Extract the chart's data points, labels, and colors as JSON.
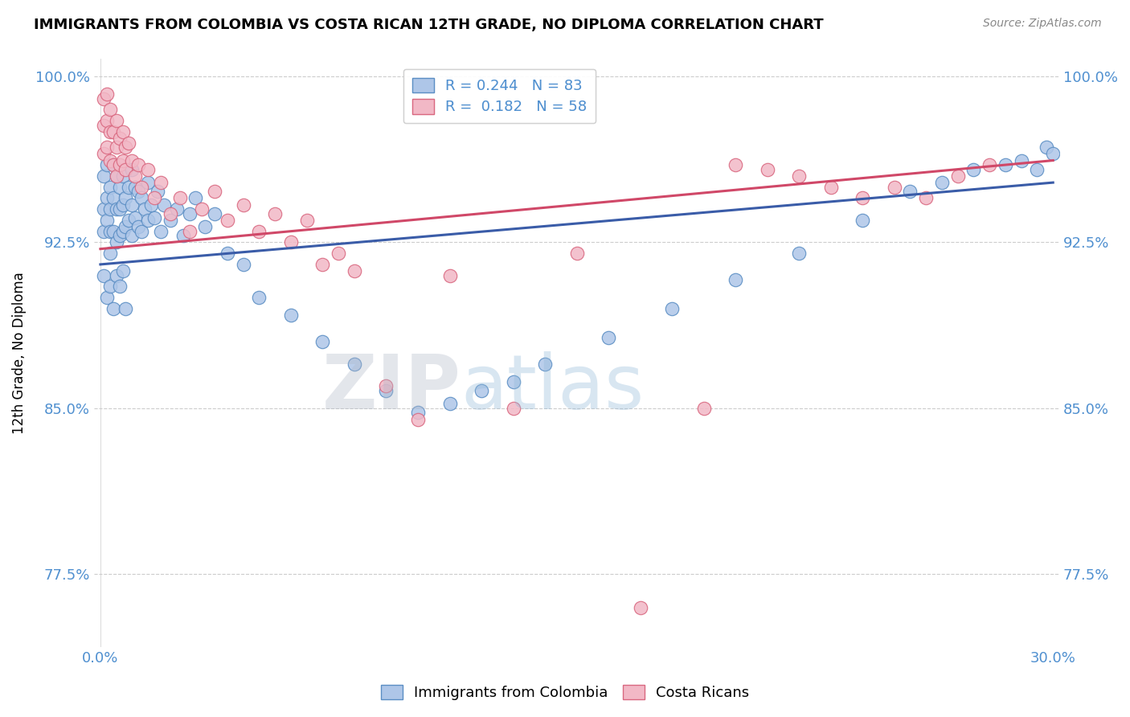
{
  "title": "IMMIGRANTS FROM COLOMBIA VS COSTA RICAN 12TH GRADE, NO DIPLOMA CORRELATION CHART",
  "source": "Source: ZipAtlas.com",
  "ylabel": "12th Grade, No Diploma",
  "xlim": [
    -0.002,
    0.302
  ],
  "ylim": [
    0.742,
    1.008
  ],
  "xtick_vals": [
    0.0,
    0.3
  ],
  "xticklabels": [
    "0.0%",
    "30.0%"
  ],
  "ytick_vals": [
    0.775,
    0.85,
    0.925,
    1.0
  ],
  "yticklabels": [
    "77.5%",
    "85.0%",
    "92.5%",
    "100.0%"
  ],
  "blue_R": 0.244,
  "blue_N": 83,
  "pink_R": 0.182,
  "pink_N": 58,
  "blue_face": "#aec6e8",
  "blue_edge": "#5b8ec4",
  "pink_face": "#f2b8c6",
  "pink_edge": "#d96880",
  "blue_line": "#3a5ca8",
  "pink_line": "#d04868",
  "tick_color": "#5090d0",
  "grid_color": "#cccccc",
  "legend_label_blue": "Immigrants from Colombia",
  "legend_label_pink": "Costa Ricans",
  "watermark_text": "ZIPatlas",
  "blue_x": [
    0.001,
    0.001,
    0.001,
    0.002,
    0.002,
    0.002,
    0.003,
    0.003,
    0.003,
    0.003,
    0.004,
    0.004,
    0.004,
    0.005,
    0.005,
    0.005,
    0.006,
    0.006,
    0.006,
    0.007,
    0.007,
    0.007,
    0.008,
    0.008,
    0.009,
    0.009,
    0.01,
    0.01,
    0.01,
    0.011,
    0.011,
    0.012,
    0.012,
    0.013,
    0.013,
    0.014,
    0.015,
    0.015,
    0.016,
    0.017,
    0.018,
    0.019,
    0.02,
    0.022,
    0.024,
    0.026,
    0.028,
    0.03,
    0.033,
    0.036,
    0.04,
    0.045,
    0.05,
    0.06,
    0.07,
    0.08,
    0.09,
    0.1,
    0.11,
    0.12,
    0.13,
    0.14,
    0.16,
    0.18,
    0.2,
    0.22,
    0.24,
    0.255,
    0.265,
    0.275,
    0.285,
    0.29,
    0.295,
    0.298,
    0.3,
    0.001,
    0.002,
    0.003,
    0.004,
    0.005,
    0.006,
    0.007,
    0.008
  ],
  "blue_y": [
    0.955,
    0.94,
    0.93,
    0.96,
    0.945,
    0.935,
    0.95,
    0.94,
    0.93,
    0.92,
    0.96,
    0.945,
    0.93,
    0.955,
    0.94,
    0.925,
    0.95,
    0.94,
    0.928,
    0.955,
    0.942,
    0.93,
    0.945,
    0.932,
    0.95,
    0.935,
    0.958,
    0.942,
    0.928,
    0.95,
    0.936,
    0.948,
    0.932,
    0.945,
    0.93,
    0.94,
    0.952,
    0.935,
    0.942,
    0.936,
    0.948,
    0.93,
    0.942,
    0.935,
    0.94,
    0.928,
    0.938,
    0.945,
    0.932,
    0.938,
    0.92,
    0.915,
    0.9,
    0.892,
    0.88,
    0.87,
    0.858,
    0.848,
    0.852,
    0.858,
    0.862,
    0.87,
    0.882,
    0.895,
    0.908,
    0.92,
    0.935,
    0.948,
    0.952,
    0.958,
    0.96,
    0.962,
    0.958,
    0.968,
    0.965,
    0.91,
    0.9,
    0.905,
    0.895,
    0.91,
    0.905,
    0.912,
    0.895
  ],
  "pink_x": [
    0.001,
    0.001,
    0.001,
    0.002,
    0.002,
    0.002,
    0.003,
    0.003,
    0.003,
    0.004,
    0.004,
    0.005,
    0.005,
    0.005,
    0.006,
    0.006,
    0.007,
    0.007,
    0.008,
    0.008,
    0.009,
    0.01,
    0.011,
    0.012,
    0.013,
    0.015,
    0.017,
    0.019,
    0.022,
    0.025,
    0.028,
    0.032,
    0.036,
    0.04,
    0.045,
    0.05,
    0.055,
    0.06,
    0.065,
    0.07,
    0.075,
    0.08,
    0.09,
    0.1,
    0.11,
    0.13,
    0.15,
    0.17,
    0.19,
    0.2,
    0.21,
    0.22,
    0.23,
    0.24,
    0.25,
    0.26,
    0.27,
    0.28
  ],
  "pink_y": [
    0.99,
    0.978,
    0.965,
    0.992,
    0.98,
    0.968,
    0.985,
    0.975,
    0.962,
    0.975,
    0.96,
    0.98,
    0.968,
    0.955,
    0.972,
    0.96,
    0.975,
    0.962,
    0.968,
    0.958,
    0.97,
    0.962,
    0.955,
    0.96,
    0.95,
    0.958,
    0.945,
    0.952,
    0.938,
    0.945,
    0.93,
    0.94,
    0.948,
    0.935,
    0.942,
    0.93,
    0.938,
    0.925,
    0.935,
    0.915,
    0.92,
    0.912,
    0.86,
    0.845,
    0.91,
    0.85,
    0.92,
    0.76,
    0.85,
    0.96,
    0.958,
    0.955,
    0.95,
    0.945,
    0.95,
    0.945,
    0.955,
    0.96
  ],
  "blue_line_x0": 0.0,
  "blue_line_y0": 0.915,
  "blue_line_x1": 0.3,
  "blue_line_y1": 0.952,
  "pink_line_x0": 0.0,
  "pink_line_y0": 0.922,
  "pink_line_x1": 0.3,
  "pink_line_y1": 0.962
}
